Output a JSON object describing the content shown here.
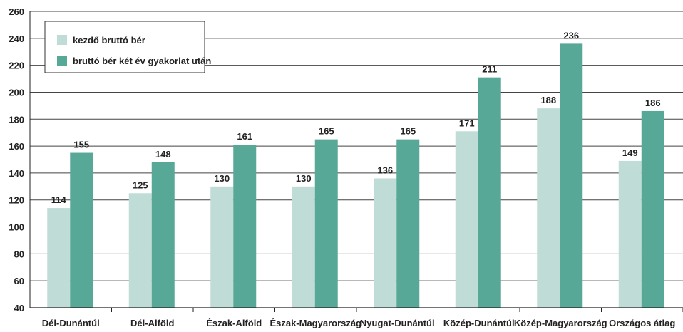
{
  "chart_data": {
    "type": "bar",
    "title": "",
    "xlabel": "",
    "ylabel": "",
    "ylim": [
      40,
      260
    ],
    "yticks": [
      40,
      60,
      80,
      100,
      120,
      140,
      160,
      180,
      200,
      220,
      240,
      260
    ],
    "grid": true,
    "legend_position": "top-left",
    "categories": [
      "Dél-Dunántúl",
      "Dél-Alföld",
      "Észak-Alföld",
      "Észak-Magyarország",
      "Nyugat-Dunántúl",
      "Közép-Dunántúl",
      "Közép-Magyarország",
      "Országos átlag"
    ],
    "series": [
      {
        "name": "kezdő bruttó bér",
        "color": "#bfddd6",
        "values": [
          114,
          125,
          130,
          130,
          136,
          171,
          188,
          149
        ]
      },
      {
        "name": "bruttó bér két év gyakorlat után",
        "color": "#58a898",
        "values": [
          155,
          148,
          161,
          165,
          165,
          211,
          236,
          186
        ]
      }
    ]
  }
}
